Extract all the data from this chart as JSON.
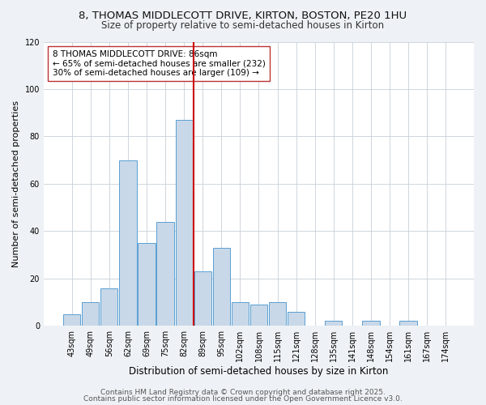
{
  "title1": "8, THOMAS MIDDLECOTT DRIVE, KIRTON, BOSTON, PE20 1HU",
  "title2": "Size of property relative to semi-detached houses in Kirton",
  "xlabel": "Distribution of semi-detached houses by size in Kirton",
  "ylabel": "Number of semi-detached properties",
  "categories": [
    "43sqm",
    "49sqm",
    "56sqm",
    "62sqm",
    "69sqm",
    "75sqm",
    "82sqm",
    "89sqm",
    "95sqm",
    "102sqm",
    "108sqm",
    "115sqm",
    "121sqm",
    "128sqm",
    "135sqm",
    "141sqm",
    "148sqm",
    "154sqm",
    "161sqm",
    "167sqm",
    "174sqm"
  ],
  "values": [
    5,
    10,
    16,
    70,
    35,
    44,
    87,
    23,
    33,
    10,
    9,
    10,
    6,
    0,
    2,
    0,
    2,
    0,
    2,
    0,
    0
  ],
  "bar_color": "#c8d8e8",
  "bar_edge_color": "#5a9fd4",
  "vline_pos": 6.5,
  "vline_color": "#cc0000",
  "ylim": [
    0,
    120
  ],
  "yticks": [
    0,
    20,
    40,
    60,
    80,
    100,
    120
  ],
  "annotation_title": "8 THOMAS MIDDLECOTT DRIVE: 86sqm",
  "annotation_line1": "← 65% of semi-detached houses are smaller (232)",
  "annotation_line2": "30% of semi-detached houses are larger (109) →",
  "footer1": "Contains HM Land Registry data © Crown copyright and database right 2025.",
  "footer2": "Contains public sector information licensed under the Open Government Licence v3.0.",
  "bg_color": "#eef2f6",
  "plot_bg_color": "#ffffff",
  "title1_fontsize": 9.5,
  "title2_fontsize": 8.5,
  "xlabel_fontsize": 8.5,
  "ylabel_fontsize": 8,
  "tick_fontsize": 7,
  "footer_fontsize": 6.5,
  "ann_fontsize": 7.5
}
